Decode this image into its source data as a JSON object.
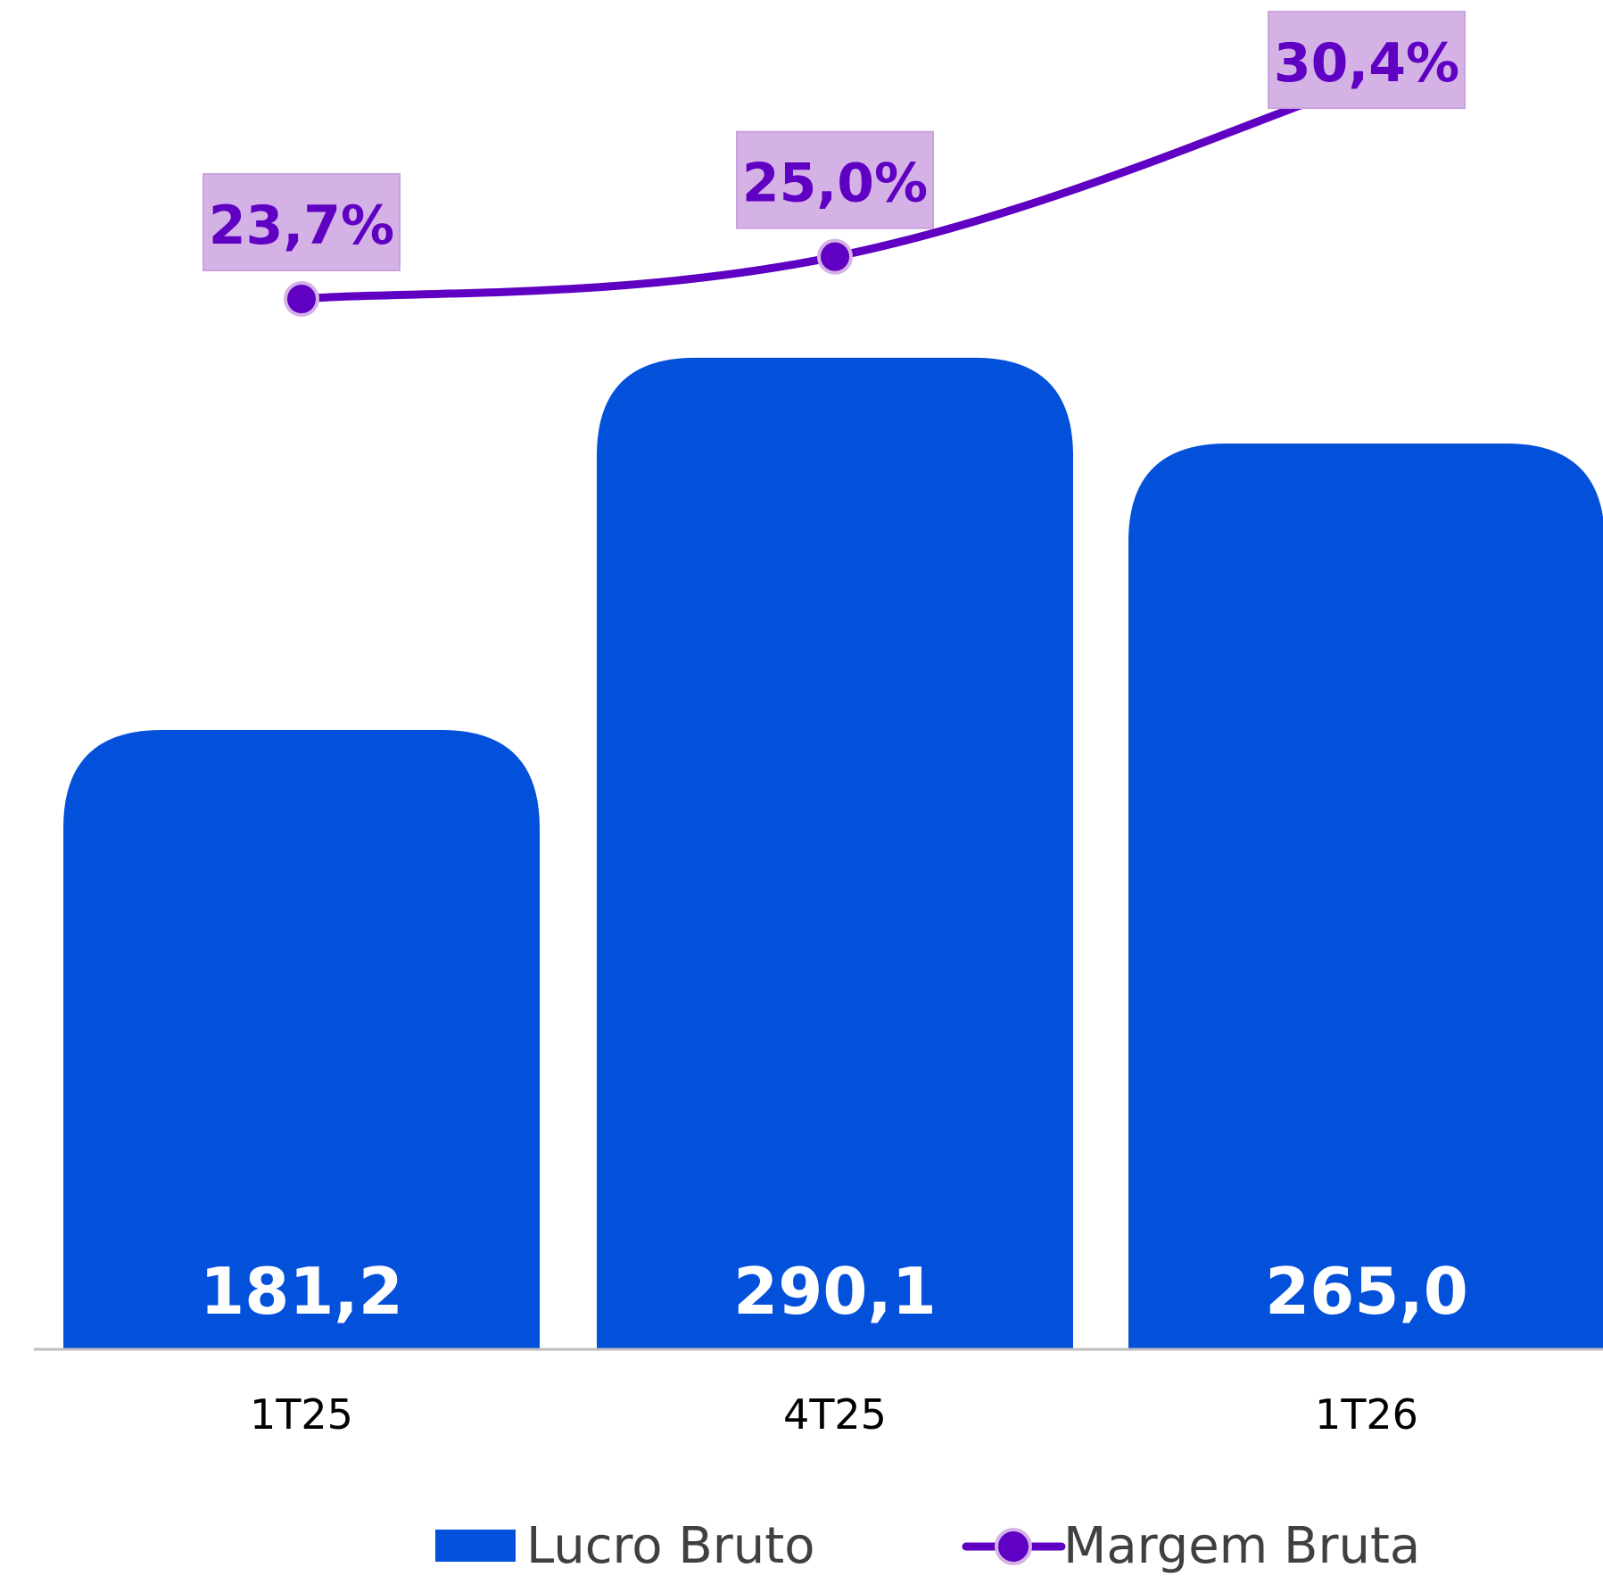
{
  "chart_data": {
    "type": "bar",
    "categories": [
      "1T25",
      "4T25",
      "1T26"
    ],
    "series": [
      {
        "name": "Lucro Bruto",
        "kind": "bar",
        "values": [
          181.2,
          290.1,
          265.0
        ],
        "labels": [
          "181,2",
          "290,1",
          "265,0"
        ],
        "color": "#0350DB"
      },
      {
        "name": "Margem Bruta",
        "kind": "line",
        "values": [
          23.7,
          25.0,
          30.4
        ],
        "labels": [
          "23,7%",
          "25,0%",
          "30,4%"
        ],
        "color": "#5F00C2",
        "label_bg": "#D5B2E6"
      }
    ],
    "legend": [
      "Lucro Bruto",
      "Margem Bruta"
    ],
    "legend_position": "bottom",
    "grid": false,
    "axis_color": "#BFBFBF"
  }
}
